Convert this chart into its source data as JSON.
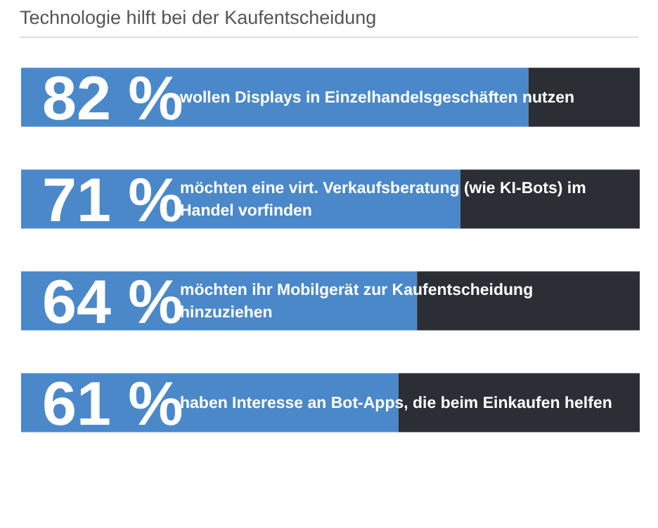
{
  "chart_data": {
    "type": "bar",
    "orientation": "horizontal",
    "stacked": true,
    "title": "Technologie hilft bei der Kaufentscheidung",
    "categories": [
      "wollen Displays in Einzelhandelsgeschäften nutzen",
      "möchten eine virt. Verkaufsberatung (wie KI-Bots) im Handel vorfinden",
      "möchten ihr Mobilgerät zur Kaufentscheidung hinzuziehen",
      "haben Interesse an Bot-Apps, die beim Einkaufen helfen"
    ],
    "series": [
      {
        "color": "#4a88ca",
        "values": [
          82,
          71,
          64,
          61
        ],
        "value_labels": [
          "82 %",
          "71 %",
          "64 %",
          "61 %"
        ]
      },
      {
        "color": "#2b2e35",
        "values": [
          18,
          29,
          36,
          39
        ]
      }
    ],
    "xlim": [
      0,
      100
    ],
    "tick_labels": false,
    "grid": false,
    "legend": false
  }
}
